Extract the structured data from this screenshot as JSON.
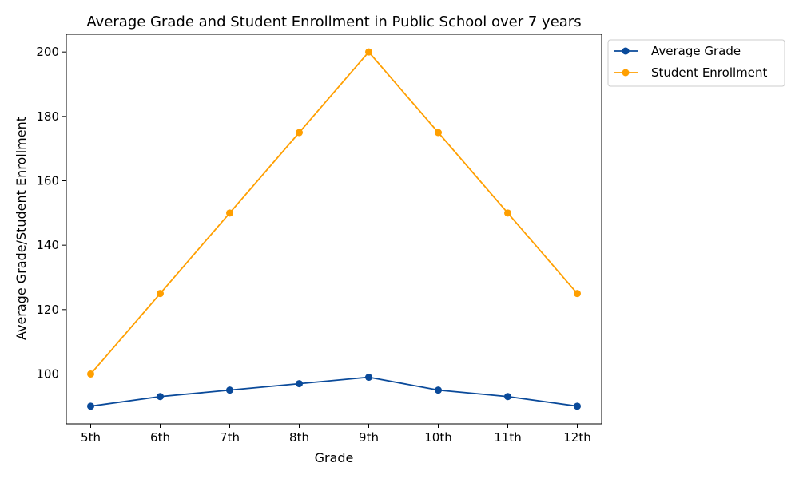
{
  "chart_data": {
    "type": "line",
    "title": "Average Grade and Student Enrollment in Public School over 7 years",
    "xlabel": "Grade",
    "ylabel": "Average Grade/Student Enrollment",
    "categories": [
      "5th",
      "6th",
      "7th",
      "8th",
      "9th",
      "10th",
      "11th",
      "12th"
    ],
    "series": [
      {
        "name": "Average Grade",
        "values": [
          90,
          93,
          95,
          97,
          99,
          95,
          93,
          90
        ],
        "color": "#0a4a9a"
      },
      {
        "name": "Student Enrollment",
        "values": [
          100,
          125,
          150,
          175,
          200,
          175,
          150,
          125
        ],
        "color": "#ff9f00"
      }
    ],
    "ylim": [
      84.5,
      205.5
    ],
    "yticks": [
      100,
      120,
      140,
      160,
      180,
      200
    ],
    "grid": false,
    "legend_position": "outside-top-right",
    "marker": "circle"
  }
}
